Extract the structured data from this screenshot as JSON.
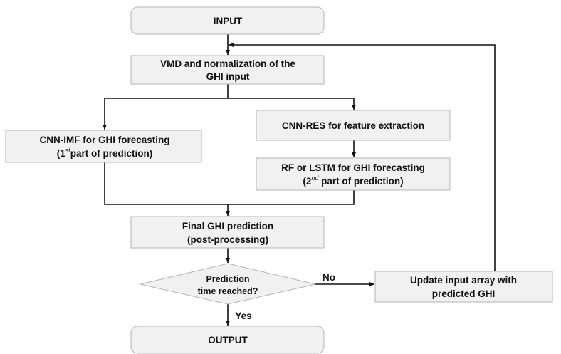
{
  "nodes": [
    {
      "label": "INPUT"
    },
    {
      "lines": [
        "VMD and normalization of the",
        "GHI input"
      ]
    },
    {
      "lines": [
        "CNN-IMF for GHI forecasting"
      ],
      "sup_line": [
        "(1",
        "st",
        "part of prediction)"
      ]
    },
    {
      "label": "CNN-RES for feature extraction"
    },
    {
      "lines": [
        "RF or LSTM for GHI forecasting"
      ],
      "sup_line": [
        "(2",
        "nd",
        " part of prediction)"
      ]
    },
    {
      "lines": [
        "Final GHI prediction",
        "(post-processing)"
      ]
    },
    {
      "lines": [
        "Prediction",
        "time reached?"
      ]
    },
    {
      "lines": [
        "Update input array with",
        "predicted GHI"
      ]
    },
    {
      "label": "OUTPUT"
    }
  ],
  "edges": {
    "no": "No",
    "yes": "Yes"
  }
}
